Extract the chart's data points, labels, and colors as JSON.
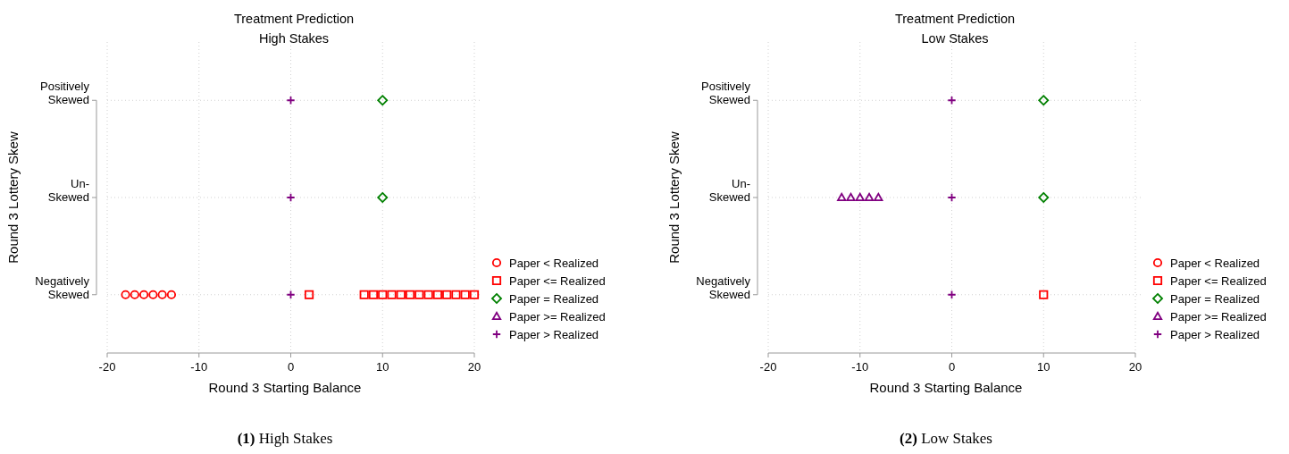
{
  "chart_data": [
    {
      "type": "scatter",
      "orientation": "horizontal",
      "title": "Treatment Prediction",
      "subtitle": "High Stakes",
      "xlabel": "Round 3 Starting Balance",
      "ylabel": "Round 3 Lottery Skew",
      "xlim": [
        -20,
        20
      ],
      "xticks": [
        -20,
        -10,
        0,
        10,
        20
      ],
      "categories": [
        "Positively Skewed",
        "Un-Skewed",
        "Negatively Skewed"
      ],
      "grid": true,
      "legend": "right",
      "annotations": [
        "(1) High Stakes"
      ],
      "series": [
        {
          "name": "Paper < Realized",
          "color": "#ff0000",
          "marker": "circle",
          "x": [
            "Negatively Skewed",
            "Negatively Skewed",
            "Negatively Skewed",
            "Negatively Skewed",
            "Negatively Skewed",
            "Negatively Skewed"
          ],
          "values": [
            -18,
            -17,
            -16,
            -15,
            -14,
            -13
          ]
        },
        {
          "name": "Paper <= Realized",
          "color": "#ff0000",
          "marker": "square",
          "x": [
            "Negatively Skewed",
            "Negatively Skewed",
            "Negatively Skewed",
            "Negatively Skewed",
            "Negatively Skewed",
            "Negatively Skewed",
            "Negatively Skewed",
            "Negatively Skewed",
            "Negatively Skewed",
            "Negatively Skewed",
            "Negatively Skewed",
            "Negatively Skewed",
            "Negatively Skewed",
            "Negatively Skewed"
          ],
          "values": [
            2,
            8,
            9,
            10,
            11,
            12,
            13,
            14,
            15,
            16,
            17,
            18,
            19,
            20
          ]
        },
        {
          "name": "Paper = Realized",
          "color": "#008000",
          "marker": "diamond",
          "x": [
            "Positively Skewed",
            "Un-Skewed"
          ],
          "values": [
            10,
            10
          ]
        },
        {
          "name": "Paper >= Realized",
          "color": "#800080",
          "marker": "triangle",
          "values": [
            null,
            null,
            null
          ]
        },
        {
          "name": "Paper > Realized",
          "color": "#800080",
          "marker": "cross",
          "x": [
            "Positively Skewed",
            "Un-Skewed",
            "Negatively Skewed"
          ],
          "values": [
            0,
            0,
            0
          ]
        }
      ]
    },
    {
      "type": "scatter",
      "orientation": "horizontal",
      "title": "Treatment Prediction",
      "subtitle": "Low Stakes",
      "xlabel": "Round 3 Starting Balance",
      "ylabel": "Round 3 Lottery Skew",
      "xlim": [
        -20,
        20
      ],
      "xticks": [
        -20,
        -10,
        0,
        10,
        20
      ],
      "categories": [
        "Positively Skewed",
        "Un-Skewed",
        "Negatively Skewed"
      ],
      "grid": true,
      "legend": "right",
      "annotations": [
        "(2) Low Stakes"
      ],
      "series": [
        {
          "name": "Paper < Realized",
          "color": "#ff0000",
          "marker": "circle",
          "values": [
            null,
            null,
            null
          ]
        },
        {
          "name": "Paper <= Realized",
          "color": "#ff0000",
          "marker": "square",
          "x": [
            "Negatively Skewed"
          ],
          "values": [
            10
          ]
        },
        {
          "name": "Paper = Realized",
          "color": "#008000",
          "marker": "diamond",
          "x": [
            "Positively Skewed",
            "Un-Skewed"
          ],
          "values": [
            10,
            10
          ]
        },
        {
          "name": "Paper >= Realized",
          "color": "#800080",
          "marker": "triangle",
          "x": [
            "Un-Skewed",
            "Un-Skewed",
            "Un-Skewed",
            "Un-Skewed",
            "Un-Skewed"
          ],
          "values": [
            -12,
            -11,
            -10,
            -9,
            -8
          ]
        },
        {
          "name": "Paper > Realized",
          "color": "#800080",
          "marker": "cross",
          "x": [
            "Positively Skewed",
            "Un-Skewed",
            "Negatively Skewed"
          ],
          "values": [
            0,
            0,
            0
          ]
        }
      ]
    }
  ]
}
